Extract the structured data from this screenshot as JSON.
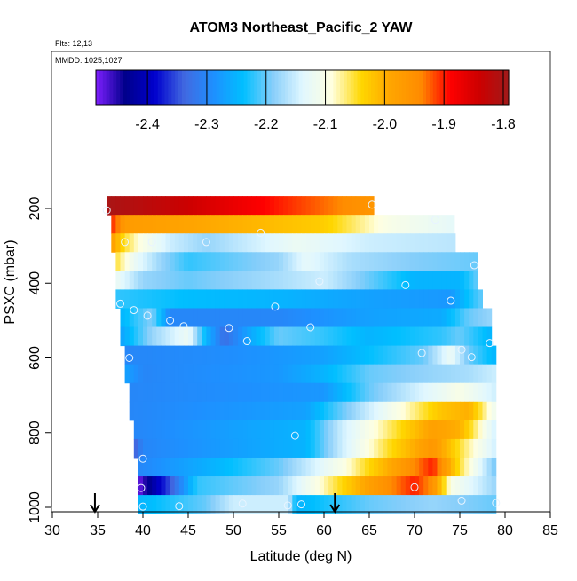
{
  "chart_data": {
    "type": "heatmap",
    "title": "ATOM3 Northeast_Pacific_2 YAW",
    "subtitle_flights": "Flts: 12,13",
    "subtitle_dates": "MMDD: 1025,1027",
    "xlabel": "Latitude (deg N)",
    "ylabel": "PSXC (mbar)",
    "xlim": [
      30,
      85
    ],
    "ylim": [
      1000,
      150
    ],
    "xticks": [
      "30",
      "35",
      "40",
      "45",
      "50",
      "55",
      "60",
      "65",
      "70",
      "75",
      "80",
      "85"
    ],
    "yticks": [
      "200",
      "400",
      "600",
      "800",
      "1000"
    ],
    "colorbar": {
      "range": [
        -2.487,
        -1.791
      ],
      "ticks": [
        "-2.4",
        "-2.3",
        "-2.2",
        "-2.1",
        "-2.0",
        "-1.9",
        "-1.8"
      ],
      "colors": [
        "#7f1fff",
        "#00008b",
        "#0000cd",
        "#4169e1",
        "#1e90ff",
        "#00bfff",
        "#87cefa",
        "#e0f7ff",
        "#ffffe0",
        "#ffd700",
        "#ffa500",
        "#ff8c00",
        "#ff0000",
        "#cd0000",
        "#a11a1a"
      ]
    },
    "rows": [
      {
        "p": 200,
        "lat": [
          36.0,
          65.5
        ],
        "stops": [
          [
            36,
            -1.8
          ],
          [
            45,
            -1.84
          ],
          [
            55,
            -1.9
          ],
          [
            65.5,
            -1.96
          ]
        ]
      },
      {
        "p": 250,
        "lat": [
          36.5,
          74.4
        ],
        "stops": [
          [
            36.5,
            -1.9
          ],
          [
            38,
            -1.97
          ],
          [
            50,
            -2.0
          ],
          [
            60,
            -2.03
          ],
          [
            67,
            -2.1
          ],
          [
            74.4,
            -2.13
          ]
        ]
      },
      {
        "p": 300,
        "lat": [
          36.5,
          74.5
        ],
        "stops": [
          [
            36.5,
            -1.97
          ],
          [
            38,
            -2.05
          ],
          [
            40,
            -2.1
          ],
          [
            43,
            -2.15
          ],
          [
            47,
            -2.18
          ],
          [
            52,
            -2.15
          ],
          [
            57,
            -2.12
          ],
          [
            65,
            -2.15
          ],
          [
            74.5,
            -2.16
          ]
        ]
      },
      {
        "p": 350,
        "lat": [
          37,
          77
        ],
        "stops": [
          [
            37,
            -2.05
          ],
          [
            39,
            -2.12
          ],
          [
            42,
            -2.18
          ],
          [
            45,
            -2.22
          ],
          [
            55,
            -2.18
          ],
          [
            58,
            -2.13
          ],
          [
            63,
            -2.17
          ],
          [
            70,
            -2.19
          ],
          [
            77,
            -2.2
          ]
        ]
      },
      {
        "p": 400,
        "lat": [
          37,
          77
        ],
        "stops": [
          [
            37,
            -2.12
          ],
          [
            40,
            -2.18
          ],
          [
            45,
            -2.2
          ],
          [
            55,
            -2.17
          ],
          [
            60,
            -2.15
          ],
          [
            65,
            -2.2
          ],
          [
            70,
            -2.25
          ],
          [
            75,
            -2.25
          ],
          [
            77,
            -2.2
          ]
        ]
      },
      {
        "p": 450,
        "lat": [
          37,
          77.5
        ],
        "stops": [
          [
            37,
            -2.22
          ],
          [
            45,
            -2.24
          ],
          [
            55,
            -2.25
          ],
          [
            65,
            -2.27
          ],
          [
            74,
            -2.28
          ],
          [
            77.5,
            -2.2
          ]
        ]
      },
      {
        "p": 500,
        "lat": [
          37.5,
          78.5
        ],
        "stops": [
          [
            37.5,
            -2.25
          ],
          [
            41,
            -2.19
          ],
          [
            43,
            -2.3
          ],
          [
            55,
            -2.3
          ],
          [
            65,
            -2.27
          ],
          [
            73,
            -2.26
          ],
          [
            76,
            -2.2
          ],
          [
            78.5,
            -2.18
          ]
        ]
      },
      {
        "p": 550,
        "lat": [
          37.5,
          78.5
        ],
        "stops": [
          [
            37.5,
            -2.27
          ],
          [
            41,
            -2.18
          ],
          [
            45,
            -2.12
          ],
          [
            47,
            -2.25
          ],
          [
            49,
            -2.33
          ],
          [
            52,
            -2.26
          ],
          [
            55,
            -2.2
          ],
          [
            60,
            -2.22
          ],
          [
            65,
            -2.25
          ],
          [
            73,
            -2.22
          ],
          [
            75,
            -2.2
          ],
          [
            78.5,
            -2.25
          ]
        ]
      },
      {
        "p": 600,
        "lat": [
          38,
          79
        ],
        "stops": [
          [
            38,
            -2.3
          ],
          [
            50,
            -2.29
          ],
          [
            60,
            -2.27
          ],
          [
            71,
            -2.2
          ],
          [
            74,
            -2.12
          ],
          [
            76,
            -2.2
          ],
          [
            79,
            -2.25
          ]
        ]
      },
      {
        "p": 650,
        "lat": [
          38,
          79
        ],
        "stops": [
          [
            38,
            -2.27
          ],
          [
            40,
            -2.3
          ],
          [
            55,
            -2.28
          ],
          [
            60,
            -2.25
          ],
          [
            65,
            -2.2
          ],
          [
            72,
            -2.18
          ],
          [
            76,
            -2.17
          ],
          [
            79,
            -2.15
          ]
        ]
      },
      {
        "p": 700,
        "lat": [
          38.5,
          79
        ],
        "stops": [
          [
            38.5,
            -2.3
          ],
          [
            60,
            -2.28
          ],
          [
            65,
            -2.2
          ],
          [
            70,
            -2.15
          ],
          [
            75,
            -2.1
          ],
          [
            79,
            -2.15
          ]
        ]
      },
      {
        "p": 750,
        "lat": [
          38.5,
          79
        ],
        "stops": [
          [
            38.5,
            -2.3
          ],
          [
            58,
            -2.27
          ],
          [
            62,
            -2.2
          ],
          [
            68,
            -2.1
          ],
          [
            73,
            -2.02
          ],
          [
            76,
            -2.0
          ],
          [
            79,
            -2.12
          ]
        ]
      },
      {
        "p": 800,
        "lat": [
          39,
          79
        ],
        "stops": [
          [
            39,
            -2.3
          ],
          [
            58,
            -2.25
          ],
          [
            62,
            -2.15
          ],
          [
            68,
            -2.05
          ],
          [
            72,
            -1.98
          ],
          [
            75,
            -2.0
          ],
          [
            79,
            -2.15
          ]
        ]
      },
      {
        "p": 850,
        "lat": [
          39,
          79
        ],
        "stops": [
          [
            39,
            -2.35
          ],
          [
            40,
            -2.3
          ],
          [
            58,
            -2.25
          ],
          [
            62,
            -2.15
          ],
          [
            67,
            -2.05
          ],
          [
            72,
            -1.96
          ],
          [
            75,
            -2.05
          ],
          [
            79,
            -2.15
          ]
        ]
      },
      {
        "p": 900,
        "lat": [
          39.5,
          79
        ],
        "stops": [
          [
            39.5,
            -2.3
          ],
          [
            48,
            -2.25
          ],
          [
            55,
            -2.2
          ],
          [
            62,
            -2.1
          ],
          [
            67,
            -2.0
          ],
          [
            72,
            -1.9
          ],
          [
            75,
            -2.05
          ],
          [
            79,
            -2.2
          ]
        ]
      },
      {
        "p": 950,
        "lat": [
          39.5,
          79
        ],
        "stops": [
          [
            39.5,
            -2.48
          ],
          [
            41,
            -2.42
          ],
          [
            43,
            -2.35
          ],
          [
            46,
            -2.22
          ],
          [
            55,
            -2.18
          ],
          [
            60,
            -2.08
          ],
          [
            65,
            -1.98
          ],
          [
            70,
            -1.9
          ],
          [
            72,
            -1.95
          ],
          [
            74,
            -2.1
          ],
          [
            79,
            -2.18
          ]
        ]
      },
      {
        "p": 1000,
        "lat": [
          39.5,
          79
        ],
        "stops": [
          [
            39.5,
            -2.25
          ],
          [
            47,
            -2.2
          ],
          [
            50,
            -2.15
          ],
          [
            56,
            -2.15
          ],
          [
            57,
            -2.25
          ],
          [
            65,
            -2.2
          ],
          [
            72,
            -2.18
          ],
          [
            79,
            -2.2
          ]
        ]
      }
    ],
    "points": [
      [
        36,
        205
      ],
      [
        65.3,
        190
      ],
      [
        72.3,
        230
      ],
      [
        53,
        265
      ],
      [
        38,
        290
      ],
      [
        41,
        290
      ],
      [
        47,
        290
      ],
      [
        76.6,
        352
      ],
      [
        59.5,
        395
      ],
      [
        69,
        405
      ],
      [
        37.5,
        455
      ],
      [
        54.6,
        463
      ],
      [
        74,
        447
      ],
      [
        39,
        472
      ],
      [
        40.5,
        487
      ],
      [
        43,
        500
      ],
      [
        44.5,
        515
      ],
      [
        49.5,
        520
      ],
      [
        58.5,
        518
      ],
      [
        51.5,
        555
      ],
      [
        75.2,
        578
      ],
      [
        78.3,
        560
      ],
      [
        76.3,
        598
      ],
      [
        38.5,
        600
      ],
      [
        70.8,
        587
      ],
      [
        56.8,
        808
      ],
      [
        40,
        870
      ],
      [
        39.8,
        948
      ],
      [
        70,
        946
      ],
      [
        40,
        998
      ],
      [
        44,
        997
      ],
      [
        51,
        990
      ],
      [
        56,
        995
      ],
      [
        57.5,
        992
      ],
      [
        75.2,
        982
      ],
      [
        79,
        988
      ]
    ],
    "arrows_lat": [
      34.7,
      61.2
    ]
  }
}
